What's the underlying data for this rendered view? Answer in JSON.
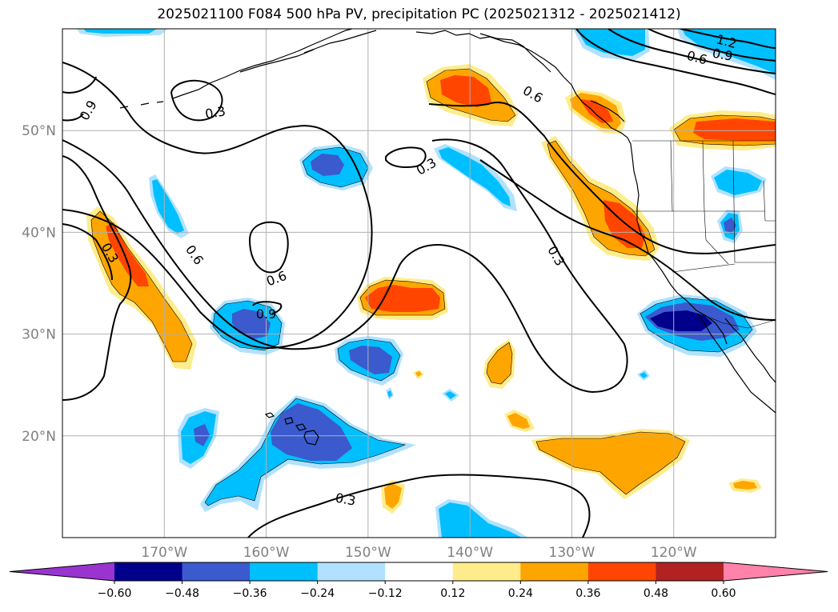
{
  "title": "2025021100 F084 500 hPa PV, precipitation PC (2025021312 - 2025021412)",
  "map": {
    "lon_range": [
      -180,
      -110
    ],
    "lat_range": [
      10,
      60
    ],
    "lon_ticks": [
      {
        "value": -170,
        "label": "170°W"
      },
      {
        "value": -160,
        "label": "160°W"
      },
      {
        "value": -150,
        "label": "150°W"
      },
      {
        "value": -140,
        "label": "140°W"
      },
      {
        "value": -130,
        "label": "130°W"
      },
      {
        "value": -120,
        "label": "120°W"
      }
    ],
    "lat_ticks": [
      {
        "value": 20,
        "label": "20°N"
      },
      {
        "value": 30,
        "label": "30°N"
      },
      {
        "value": 40,
        "label": "40°N"
      },
      {
        "value": 50,
        "label": "50°N"
      }
    ],
    "gridlines": true,
    "contour_labels": [
      {
        "text": "0.3",
        "lon": -175.3,
        "lat": 38.0,
        "rot": 60
      },
      {
        "text": "0.9",
        "lon": -177.5,
        "lat": 52.0,
        "rot": -60
      },
      {
        "text": "0.3",
        "lon": -165.0,
        "lat": 51.8,
        "rot": -10
      },
      {
        "text": "0.6",
        "lon": -167.0,
        "lat": 37.8,
        "rot": 55
      },
      {
        "text": "0.6",
        "lon": -159.0,
        "lat": 35.5,
        "rot": -20
      },
      {
        "text": "0.9",
        "lon": -160.0,
        "lat": 32.0,
        "rot": 0
      },
      {
        "text": "0.3",
        "lon": -144.3,
        "lat": 46.5,
        "rot": -30
      },
      {
        "text": "0.6",
        "lon": -133.8,
        "lat": 53.6,
        "rot": 30
      },
      {
        "text": "0.3",
        "lon": -131.5,
        "lat": 37.7,
        "rot": 60
      },
      {
        "text": "0.6",
        "lon": -117.7,
        "lat": 57.2,
        "rot": 15
      },
      {
        "text": "0.9",
        "lon": -115.2,
        "lat": 57.5,
        "rot": 10
      },
      {
        "text": "1.2",
        "lon": -114.8,
        "lat": 58.8,
        "rot": 15
      },
      {
        "text": "0.3",
        "lon": -152.2,
        "lat": 13.8,
        "rot": 10
      }
    ]
  },
  "colorbar": {
    "colors": [
      "#9a34d0",
      "#00008b",
      "#3a5acd",
      "#00bfff",
      "#b0e2ff",
      "#ffffff",
      "#ffec8b",
      "#ffa500",
      "#ff4500",
      "#b22222",
      "#ff82ab"
    ],
    "tick_labels": [
      "−0.60",
      "−0.48",
      "−0.36",
      "−0.24",
      "−0.12",
      "0.12",
      "0.24",
      "0.36",
      "0.48",
      "0.60"
    ]
  }
}
